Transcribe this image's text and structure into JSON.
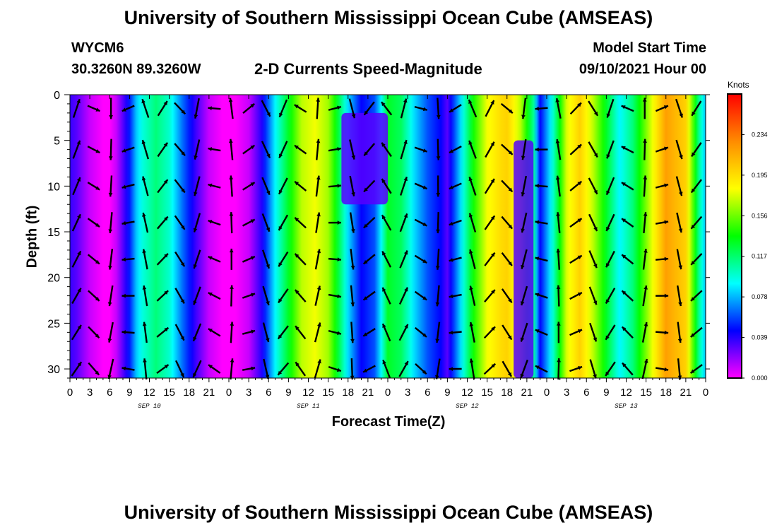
{
  "header": {
    "title": "University of Southern Mississippi Ocean Cube (AMSEAS)",
    "station": "WYCM6",
    "coords": "30.3260N  89.3260W",
    "subtitle": "2-D Currents Speed-Magnitude",
    "model_start_label": "Model Start Time",
    "model_start_value": "09/10/2021 Hour 00"
  },
  "footer": {
    "title": "University of Southern Mississippi Ocean Cube (AMSEAS)"
  },
  "chart_data": {
    "type": "heatmap",
    "title": "2-D Currents Speed-Magnitude",
    "xlabel": "Forecast Time(Z)",
    "ylabel": "Depth (ft)",
    "x_ticks": [
      "0",
      "3",
      "6",
      "9",
      "12",
      "15",
      "18",
      "21",
      "0",
      "3",
      "6",
      "9",
      "12",
      "15",
      "18",
      "21",
      "0",
      "3",
      "6",
      "9",
      "12",
      "15",
      "18",
      "21",
      "0",
      "3",
      "6",
      "9",
      "12",
      "15",
      "18",
      "21",
      "0"
    ],
    "x_range_hours": [
      0,
      96
    ],
    "date_labels": [
      {
        "text": "SEP 10",
        "hour": 12
      },
      {
        "text": "SEP 11",
        "hour": 36
      },
      {
        "text": "SEP 12",
        "hour": 60
      },
      {
        "text": "SEP 13",
        "hour": 84
      }
    ],
    "y_ticks": [
      0,
      5,
      10,
      15,
      20,
      25,
      30
    ],
    "ylim": [
      0,
      31
    ],
    "y_inverted": true,
    "colorbar": {
      "unit": "Knots",
      "range": [
        0,
        0.273
      ],
      "ticks": [
        "0.000",
        "0.039",
        "0.078",
        "0.117",
        "0.156",
        "0.195",
        "0.234"
      ],
      "colors": [
        "#ff00ff",
        "#0000ff",
        "#00ffff",
        "#00ff00",
        "#ffff00",
        "#ff8c00",
        "#ff0000"
      ]
    },
    "speed_profile_knots": {
      "hours": [
        0,
        1,
        3,
        5,
        6,
        7,
        9,
        10,
        11,
        13,
        15,
        17,
        19,
        21,
        23,
        25,
        27,
        29,
        30,
        31,
        33,
        35,
        37,
        39,
        40,
        42,
        44,
        46,
        47,
        48,
        50,
        52,
        54,
        56,
        57,
        59,
        61,
        63,
        65,
        66,
        68,
        70,
        71,
        73,
        75,
        77,
        79,
        81,
        83,
        85,
        88,
        90,
        93,
        95,
        96
      ],
      "values": [
        0.036,
        0.03,
        0.01,
        0.0,
        0.0,
        0.01,
        0.05,
        0.08,
        0.097,
        0.115,
        0.1,
        0.065,
        0.035,
        0.01,
        0.0,
        0.0,
        0.01,
        0.04,
        0.065,
        0.09,
        0.13,
        0.17,
        0.18,
        0.165,
        0.14,
        0.085,
        0.045,
        0.06,
        0.09,
        0.13,
        0.12,
        0.085,
        0.06,
        0.045,
        0.03,
        0.085,
        0.14,
        0.18,
        0.195,
        0.2,
        0.17,
        0.11,
        0.045,
        0.1,
        0.175,
        0.2,
        0.17,
        0.13,
        0.09,
        0.115,
        0.18,
        0.22,
        0.2,
        0.11,
        0.08
      ]
    },
    "low_speed_patches": [
      {
        "hours": [
          41,
          48
        ],
        "depth_ft": [
          2,
          12
        ],
        "value": 0.03
      },
      {
        "hours": [
          67,
          70
        ],
        "depth_ft": [
          5,
          31
        ],
        "value": 0.03
      }
    ],
    "current_vectors_note": "black arrows show current direction at sampled times and depths"
  }
}
